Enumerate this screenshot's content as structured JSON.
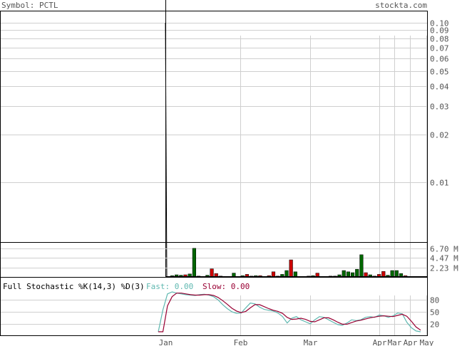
{
  "header": {
    "symbol_label": "Symbol: PCTL",
    "site": "stockta.com"
  },
  "stochastic": {
    "title": "Full Stochastic %K(14,3) %D(3)",
    "fast_label": "Fast: 0.00",
    "slow_label": "Slow: 0.00"
  },
  "colors": {
    "fast": "#5fb8b0",
    "slow": "#990033",
    "up_volume": "#006600",
    "down_volume": "#cc0000",
    "grid": "#cfcfcf",
    "text": "#555555"
  },
  "chart_data": [
    {
      "type": "line",
      "panel": "price",
      "scale": "log",
      "ylim": [
        0.005,
        0.1
      ],
      "y_ticks": [
        "0.10",
        "0.09",
        "0.08",
        "0.07",
        "0.06",
        "0.05",
        "0.04",
        "0.03",
        "0.02",
        "0.01"
      ],
      "x_ticks": [
        "Jan",
        "Feb",
        "Mar",
        "Apr",
        "Mar",
        "Apr",
        "May"
      ],
      "grid": true,
      "series": [
        {
          "values": [
            0.005,
            0.1
          ]
        }
      ]
    },
    {
      "type": "bar",
      "panel": "volume",
      "ylim": [
        0,
        8.0
      ],
      "y_ticks": [
        "6.70 M",
        "4.47 M",
        "2.23 M"
      ],
      "values": [
        0,
        0.3,
        0.5,
        0.4,
        0.5,
        0.7,
        6.7,
        0.2,
        0,
        0.4,
        1.9,
        0.8,
        0.2,
        0,
        0.1,
        0.9,
        0,
        0.3,
        0.6,
        0.2,
        0.3,
        0.3,
        0.1,
        0.3,
        1.2,
        0.2,
        0.6,
        1.5,
        4.0,
        1.2,
        0,
        0.1,
        0.2,
        0.3,
        0.9,
        0,
        0.1,
        0.2,
        0.2,
        0.5,
        1.5,
        1.2,
        1.0,
        1.8,
        5.2,
        1.0,
        0.5,
        0.2,
        0.6,
        1.3,
        0.4,
        1.5,
        1.5,
        0.8,
        0.3,
        0.1,
        0.1,
        0.1
      ],
      "up": [
        false,
        true,
        true,
        true,
        false,
        true,
        true,
        false,
        false,
        true,
        false,
        false,
        false,
        false,
        true,
        true,
        false,
        true,
        false,
        false,
        true,
        false,
        true,
        false,
        false,
        true,
        true,
        true,
        false,
        true,
        false,
        true,
        false,
        true,
        false,
        false,
        true,
        false,
        true,
        true,
        true,
        true,
        true,
        true,
        true,
        false,
        true,
        false,
        false,
        false,
        true,
        true,
        true,
        true,
        false,
        true,
        true,
        true
      ]
    },
    {
      "type": "line",
      "panel": "stochastic",
      "ylim": [
        0,
        100
      ],
      "y_ticks": [
        "80",
        "50",
        "20"
      ],
      "series": [
        {
          "values": [
            0,
            55,
            95,
            100,
            97,
            95,
            93,
            92,
            91,
            93,
            94,
            92,
            88,
            80,
            68,
            58,
            50,
            46,
            47,
            60,
            72,
            70,
            62,
            56,
            54,
            52,
            47,
            38,
            22,
            34,
            38,
            30,
            25,
            20,
            30,
            38,
            36,
            30,
            24,
            18,
            16,
            22,
            30,
            28,
            30,
            36,
            38,
            36,
            42,
            40,
            36,
            40,
            47,
            45,
            24,
            10,
            2,
            0
          ]
        },
        {
          "values": [
            0,
            0,
            65,
            88,
            97,
            97,
            95,
            93,
            92,
            92,
            93,
            93,
            91,
            86,
            78,
            69,
            59,
            52,
            48,
            51,
            60,
            68,
            68,
            63,
            58,
            54,
            51,
            46,
            36,
            31,
            32,
            34,
            31,
            26,
            25,
            30,
            35,
            35,
            30,
            24,
            19,
            19,
            23,
            27,
            29,
            32,
            35,
            37,
            39,
            40,
            39,
            38,
            41,
            44,
            39,
            26,
            12,
            4
          ]
        }
      ]
    }
  ]
}
